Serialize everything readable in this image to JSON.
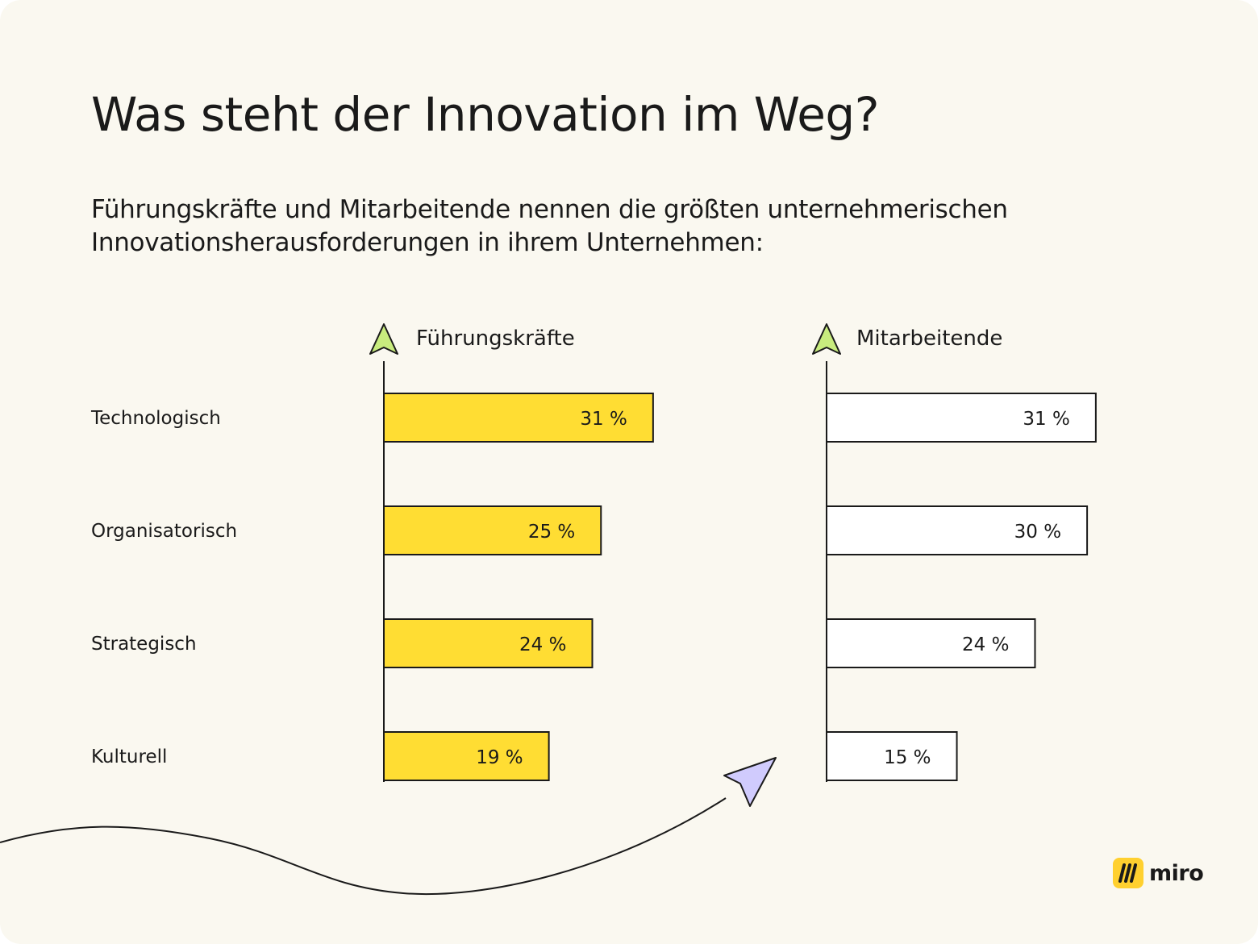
{
  "title": "Was steht der Innovation im Weg?",
  "subtitle": "Führungskräfte und Mitarbeitende nennen die größten unternehmerischen Innovationsherausforderungen in ihrem Unternehmen:",
  "logo": {
    "name": "miro"
  },
  "colors": {
    "background": "#faf8f0",
    "leaders_bar": "#ffdd33",
    "employees_bar": "#ffffff",
    "arrow_green": "#c8ec7e",
    "arrow_purple": "#d0cbfd",
    "logo_yellow": "#ffd02f"
  },
  "chart_data": {
    "type": "bar",
    "orientation": "horizontal",
    "title": "Was steht der Innovation im Weg?",
    "categories": [
      "Technologisch",
      "Organisatorisch",
      "Strategisch",
      "Kulturell"
    ],
    "unit": "%",
    "series": [
      {
        "name": "Führungskräfte",
        "values": [
          31,
          25,
          24,
          19
        ],
        "labels": [
          "31 %",
          "25 %",
          "24 %",
          "19 %"
        ]
      },
      {
        "name": "Mitarbeitende",
        "values": [
          31,
          30,
          24,
          15
        ],
        "labels": [
          "31 %",
          "30 %",
          "24 %",
          "15 %"
        ]
      }
    ],
    "xlim": [
      0,
      31
    ]
  }
}
